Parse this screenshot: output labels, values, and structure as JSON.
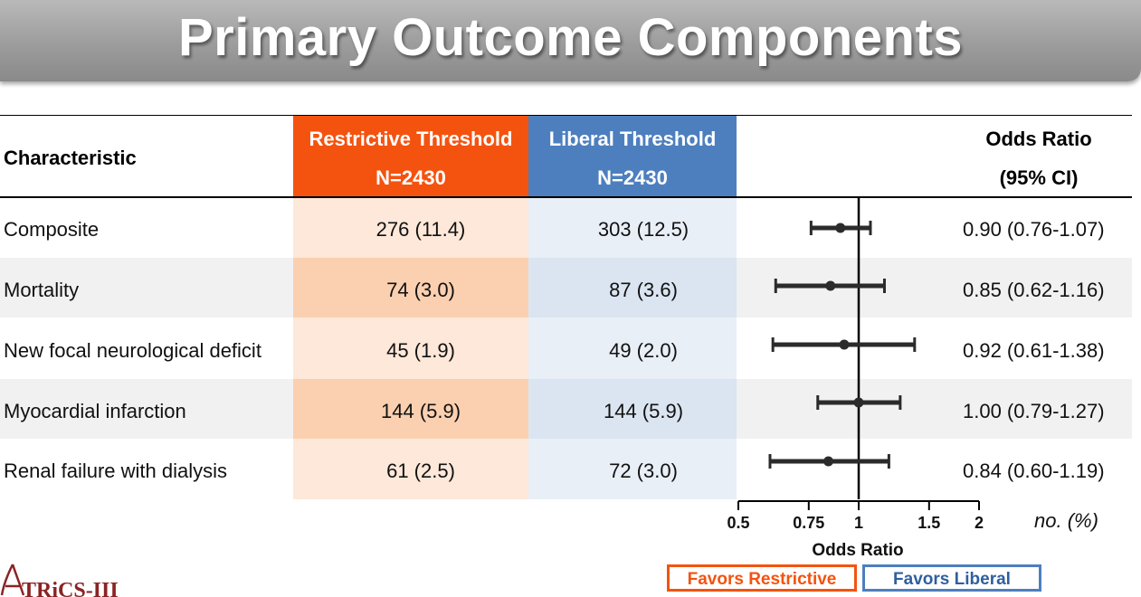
{
  "title": "Primary Outcome Components",
  "table": {
    "header": {
      "characteristic": "Characteristic",
      "restrictive_label": "Restrictive Threshold",
      "restrictive_n": "N=2430",
      "liberal_label": "Liberal Threshold",
      "liberal_n": "N=2430",
      "or_label": "Odds Ratio",
      "or_ci": "(95% CI)"
    },
    "rows": [
      {
        "characteristic": "Composite",
        "restrictive": "276 (11.4)",
        "liberal": "303 (12.5)",
        "or_text": "0.90 (0.76-1.07)"
      },
      {
        "characteristic": "Mortality",
        "restrictive": "74 (3.0)",
        "liberal": "87 (3.6)",
        "or_text": "0.85 (0.62-1.16)"
      },
      {
        "characteristic": "New focal neurological deficit",
        "restrictive": "45 (1.9)",
        "liberal": "49 (2.0)",
        "or_text": "0.92 (0.61-1.38)"
      },
      {
        "characteristic": "Myocardial infarction",
        "restrictive": "144 (5.9)",
        "liberal": "144 (5.9)",
        "or_text": "1.00 (0.79-1.27)"
      },
      {
        "characteristic": "Renal failure with dialysis",
        "restrictive": "61 (2.5)",
        "liberal": "72 (3.0)",
        "or_text": "0.84 (0.60-1.19)"
      }
    ],
    "units_note": "no. (%)"
  },
  "legend": {
    "favors_restrictive": "Favors Restrictive",
    "favors_liberal": "Favors Liberal"
  },
  "logo_text": "TRiCS-III",
  "colors": {
    "restrictive_header": "#f4530f",
    "restrictive_fill_light": "#fde8d9",
    "restrictive_fill_dark": "#fbd0b0",
    "liberal_header": "#4d7fbe",
    "liberal_fill_light": "#e9eff7",
    "liberal_fill_dark": "#dbe5f1",
    "forest_marks": "#2b2b2b"
  },
  "chart_data": {
    "type": "forest",
    "xlabel": "Odds Ratio",
    "xscale": "log",
    "xlim": [
      0.5,
      2
    ],
    "xticks": [
      0.5,
      0.75,
      1,
      1.5,
      2
    ],
    "xtick_labels": [
      "0.5",
      "0.75",
      "1",
      "1.5",
      "2"
    ],
    "reference_line": 1,
    "categories": [
      "Composite",
      "Mortality",
      "New focal neurological deficit",
      "Myocardial infarction",
      "Renal failure with dialysis"
    ],
    "estimates": [
      0.9,
      0.85,
      0.92,
      1.0,
      0.84
    ],
    "ci_low": [
      0.76,
      0.62,
      0.61,
      0.79,
      0.6
    ],
    "ci_high": [
      1.07,
      1.16,
      1.38,
      1.27,
      1.19
    ]
  }
}
